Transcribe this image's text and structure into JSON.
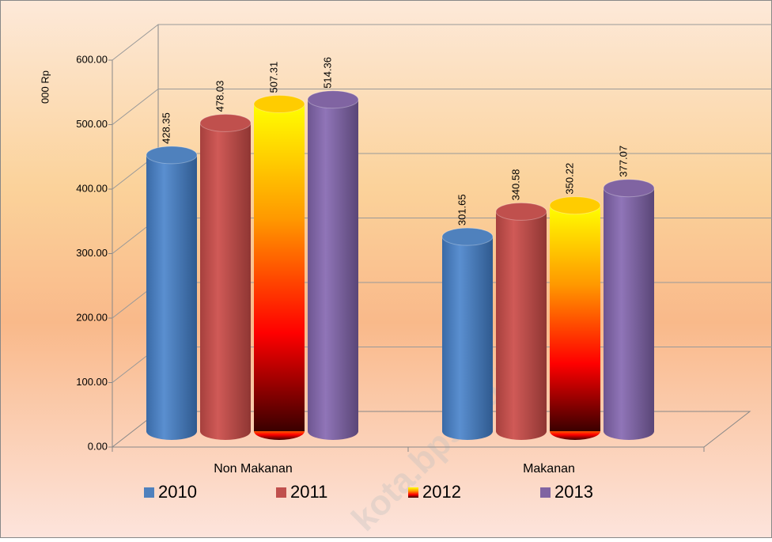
{
  "chart_data": {
    "type": "bar",
    "y_label": "000 Rp",
    "watermark": "kota.bps.go.id",
    "categories": [
      "Non Makanan",
      "Makanan"
    ],
    "series": [
      {
        "name": "2010",
        "color": "#4f81bd",
        "values": [
          428.35,
          301.65
        ]
      },
      {
        "name": "2011",
        "color": "#c0504d",
        "values": [
          478.03,
          340.58
        ]
      },
      {
        "name": "2012",
        "color": "#ffcc00",
        "values": [
          507.31,
          350.22
        ]
      },
      {
        "name": "2013",
        "color": "#8064a2",
        "values": [
          514.36,
          377.07
        ]
      }
    ],
    "ylim": [
      0,
      600
    ],
    "yticks": [
      {
        "value": 0,
        "label": "0.00"
      },
      {
        "value": 100,
        "label": "100.00"
      },
      {
        "value": 200,
        "label": "200.00"
      },
      {
        "value": 300,
        "label": "300.00"
      },
      {
        "value": 400,
        "label": "400.00"
      },
      {
        "value": 500,
        "label": "500.00"
      },
      {
        "value": 600,
        "label": "600.00"
      }
    ],
    "grid": true,
    "legend": "bottom"
  }
}
